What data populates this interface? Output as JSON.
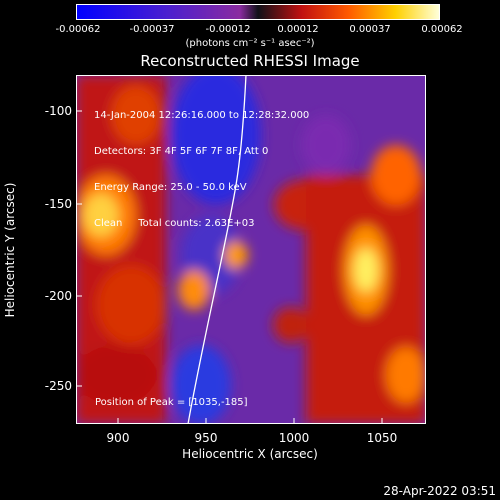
{
  "colorbar": {
    "ticks": [
      "-0.00062",
      "-0.00037",
      "-0.00012",
      "0.00012",
      "0.00037",
      "0.00062"
    ],
    "units": "(photons cm⁻² s⁻¹ asec⁻²)"
  },
  "plot": {
    "title": "Reconstructed RHESSI Image",
    "xlabel": "Heliocentric X (arcsec)",
    "ylabel": "Heliocentric Y (arcsec)",
    "xticks": [
      "900",
      "950",
      "1000",
      "1050"
    ],
    "yticks": [
      "-100",
      "-150",
      "-200",
      "-250"
    ],
    "info": [
      "14-Jan-2004 12:26:16.000 to 12:28:32.000",
      "Detectors: 3F 4F 5F 6F 7F 8F, Att 0",
      "Energy Range: 25.0 - 50.0 keV",
      "Clean     Total counts: 2.63E+03"
    ],
    "peak": "Position of Peak = [1035,-185]"
  },
  "footer": {
    "date": "28-Apr-2022 03:51"
  }
}
